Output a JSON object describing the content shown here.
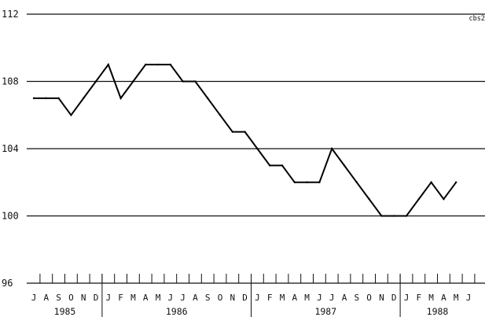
{
  "chart_data": {
    "type": "line",
    "title": "",
    "xlabel": "",
    "ylabel": "",
    "corner_code": "cbs2",
    "ylim": [
      96,
      112
    ],
    "yticks": [
      112,
      108,
      104,
      100,
      96
    ],
    "x_start": "1985-07",
    "x_end": "1988-06",
    "month_labels": [
      "J",
      "A",
      "S",
      "O",
      "N",
      "D",
      "J",
      "F",
      "M",
      "A",
      "M",
      "J",
      "J",
      "A",
      "S",
      "O",
      "N",
      "D",
      "J",
      "F",
      "M",
      "A",
      "M",
      "J",
      "J",
      "A",
      "S",
      "O",
      "N",
      "D",
      "J",
      "F",
      "M",
      "A",
      "M",
      "J"
    ],
    "year_labels": [
      {
        "label": "1985",
        "first_month": "1985-07",
        "last_month": "1985-12"
      },
      {
        "label": "1986",
        "first_month": "1986-01",
        "last_month": "1986-12"
      },
      {
        "label": "1987",
        "first_month": "1987-01",
        "last_month": "1987-12"
      },
      {
        "label": "1988",
        "first_month": "1988-01",
        "last_month": "1988-06"
      }
    ],
    "series": [
      {
        "points": [
          {
            "x": "1985-07",
            "y": 107
          },
          {
            "x": "1985-08",
            "y": 107
          },
          {
            "x": "1985-09",
            "y": 107
          },
          {
            "x": "1985-10",
            "y": 106
          },
          {
            "x": "1985-11",
            "y": 107
          },
          {
            "x": "1985-12",
            "y": 108
          },
          {
            "x": "1986-01",
            "y": 109
          },
          {
            "x": "1986-02",
            "y": 107
          },
          {
            "x": "1986-03",
            "y": 108
          },
          {
            "x": "1986-04",
            "y": 109
          },
          {
            "x": "1986-05",
            "y": 109
          },
          {
            "x": "1986-06",
            "y": 109
          },
          {
            "x": "1986-07",
            "y": 108
          },
          {
            "x": "1986-08",
            "y": 108
          },
          {
            "x": "1986-09",
            "y": 107
          },
          {
            "x": "1986-10",
            "y": 106
          },
          {
            "x": "1986-11",
            "y": 105
          },
          {
            "x": "1986-12",
            "y": 105
          },
          {
            "x": "1987-01",
            "y": 104
          },
          {
            "x": "1987-02",
            "y": 103
          },
          {
            "x": "1987-03",
            "y": 103
          },
          {
            "x": "1987-04",
            "y": 102
          },
          {
            "x": "1987-05",
            "y": 102
          },
          {
            "x": "1987-06",
            "y": 102
          },
          {
            "x": "1987-07",
            "y": 104
          },
          {
            "x": "1987-08",
            "y": 103
          },
          {
            "x": "1987-09",
            "y": 102
          },
          {
            "x": "1987-10",
            "y": 101
          },
          {
            "x": "1987-11",
            "y": 100
          },
          {
            "x": "1987-12",
            "y": 100
          },
          {
            "x": "1988-01",
            "y": 100
          },
          {
            "x": "1988-02",
            "y": 101
          },
          {
            "x": "1988-03",
            "y": 102
          },
          {
            "x": "1988-04",
            "y": 101
          },
          {
            "x": "1988-05",
            "y": 102
          }
        ]
      }
    ],
    "grid": true,
    "legend": "none"
  }
}
